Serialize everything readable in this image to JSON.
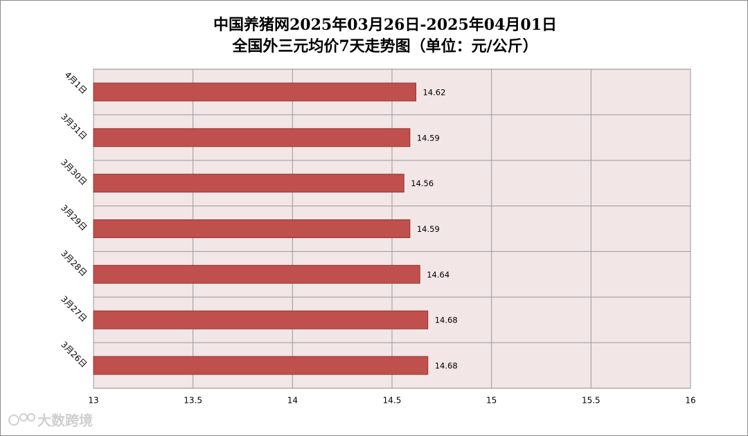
{
  "chart_data": {
    "type": "bar",
    "orientation": "horizontal",
    "title": "中国养猪网2025年03月26日-2025年04月01日",
    "subtitle": "全国外三元均价7天走势图（单位：元/公斤）",
    "categories": [
      "4月1日",
      "3月31日",
      "3月30日",
      "3月29日",
      "3月28日",
      "3月27日",
      "3月26日"
    ],
    "values": [
      14.62,
      14.59,
      14.56,
      14.59,
      14.64,
      14.68,
      14.68
    ],
    "color": "#c0504d",
    "xlim": [
      13,
      16
    ],
    "xticks": [
      13,
      13.5,
      14,
      14.5,
      15,
      15.5,
      16
    ],
    "grid": true,
    "watermark": "大数跨境"
  }
}
